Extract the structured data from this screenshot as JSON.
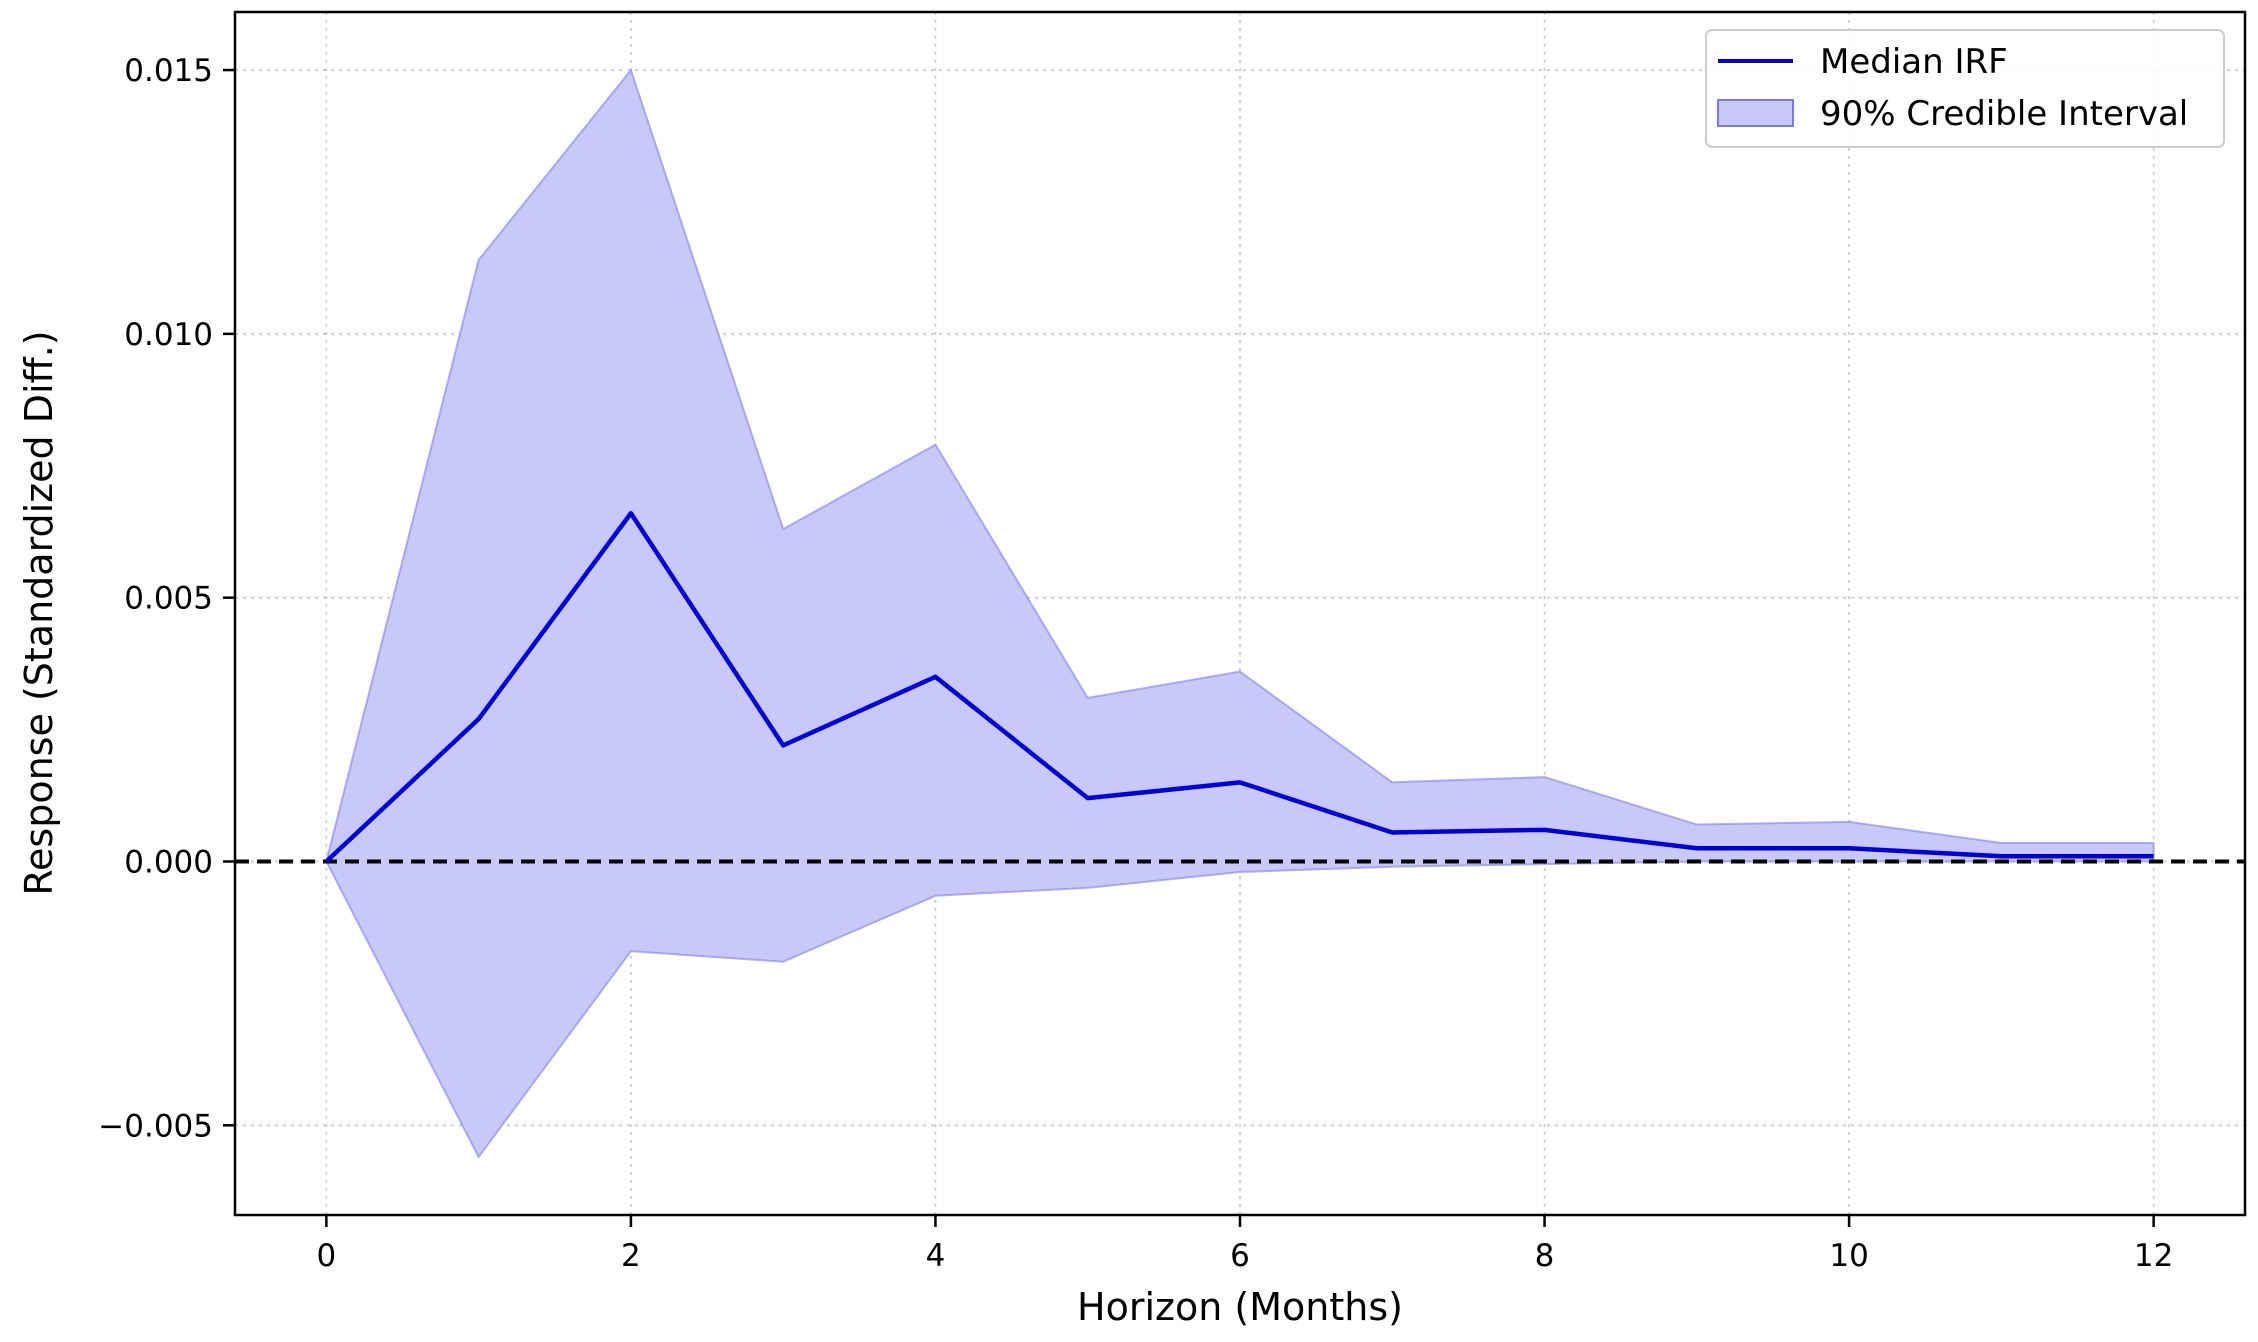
{
  "chart_data": {
    "type": "line",
    "title": "",
    "xlabel": "Horizon (Months)",
    "ylabel": "Response (Standardized Diff.)",
    "xlim": [
      -0.6,
      12.6
    ],
    "ylim": [
      -0.0067,
      0.0161
    ],
    "x_ticks": [
      0,
      2,
      4,
      6,
      8,
      10,
      12
    ],
    "x_tick_labels": [
      "0",
      "2",
      "4",
      "6",
      "8",
      "10",
      "12"
    ],
    "y_ticks": [
      -0.005,
      0.0,
      0.005,
      0.01,
      0.015
    ],
    "y_tick_labels": [
      "−0.005",
      "0.000",
      "0.005",
      "0.010",
      "0.015"
    ],
    "grid": true,
    "reference_line": {
      "y": 0.0,
      "style": "dashed",
      "color": "#000000"
    },
    "legend": {
      "placement": "top-right",
      "entries": [
        "Median IRF",
        "90% Credible Interval"
      ]
    },
    "x": [
      0,
      1,
      2,
      3,
      4,
      5,
      6,
      7,
      8,
      9,
      10,
      11,
      12
    ],
    "series": [
      {
        "name": "Median IRF",
        "kind": "line",
        "color": "#0000dd",
        "values": [
          0.0,
          0.0027,
          0.0066,
          0.0022,
          0.0035,
          0.0012,
          0.0015,
          0.00055,
          0.0006,
          0.00025,
          0.00025,
          0.0001,
          0.0001
        ]
      },
      {
        "name": "90% Credible Interval",
        "kind": "band",
        "color": "#7777ee",
        "fill": "#c9c9f9",
        "upper": [
          0.0,
          0.0114,
          0.015,
          0.0063,
          0.0079,
          0.0031,
          0.0036,
          0.0015,
          0.0016,
          0.0007,
          0.00075,
          0.00035,
          0.00035
        ],
        "lower": [
          0.0,
          -0.0056,
          -0.0017,
          -0.0019,
          -0.00065,
          -0.0005,
          -0.0002,
          -0.0001,
          -5e-05,
          0.0,
          0.0,
          0.0,
          0.0
        ]
      }
    ]
  }
}
